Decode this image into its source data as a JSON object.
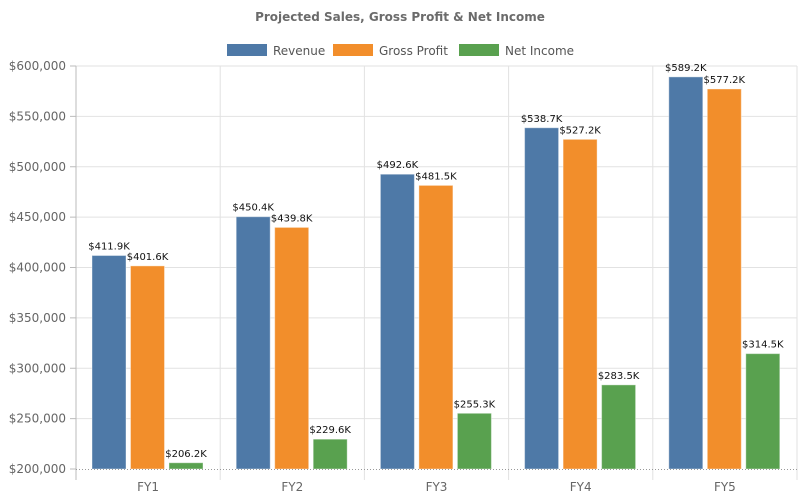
{
  "chart_data": {
    "type": "bar",
    "title": "Projected Sales, Gross Profit & Net Income",
    "categories": [
      "FY1",
      "FY2",
      "FY3",
      "FY4",
      "FY5"
    ],
    "series": [
      {
        "name": "Revenue",
        "color": "#4e79a7",
        "values": [
          411900,
          450400,
          492600,
          538700,
          589200
        ],
        "labels": [
          "$411.9K",
          "$450.4K",
          "$492.6K",
          "$538.7K",
          "$589.2K"
        ]
      },
      {
        "name": "Gross Profit",
        "color": "#f28e2b",
        "values": [
          401600,
          439800,
          481500,
          527200,
          577200
        ],
        "labels": [
          "$401.6K",
          "$439.8K",
          "$481.5K",
          "$527.2K",
          "$577.2K"
        ]
      },
      {
        "name": "Net Income",
        "color": "#59a14f",
        "values": [
          206200,
          229600,
          255300,
          283500,
          314500
        ],
        "labels": [
          "$206.2K",
          "$229.6K",
          "$255.3K",
          "$283.5K",
          "$314.5K"
        ]
      }
    ],
    "ylim": [
      200000,
      600000
    ],
    "yticks": [
      "$200,000",
      "$250,000",
      "$300,000",
      "$350,000",
      "$400,000",
      "$450,000",
      "$500,000",
      "$550,000",
      "$600,000"
    ],
    "xlabel": "",
    "ylabel": "",
    "grid": true,
    "legend": "top-center"
  }
}
